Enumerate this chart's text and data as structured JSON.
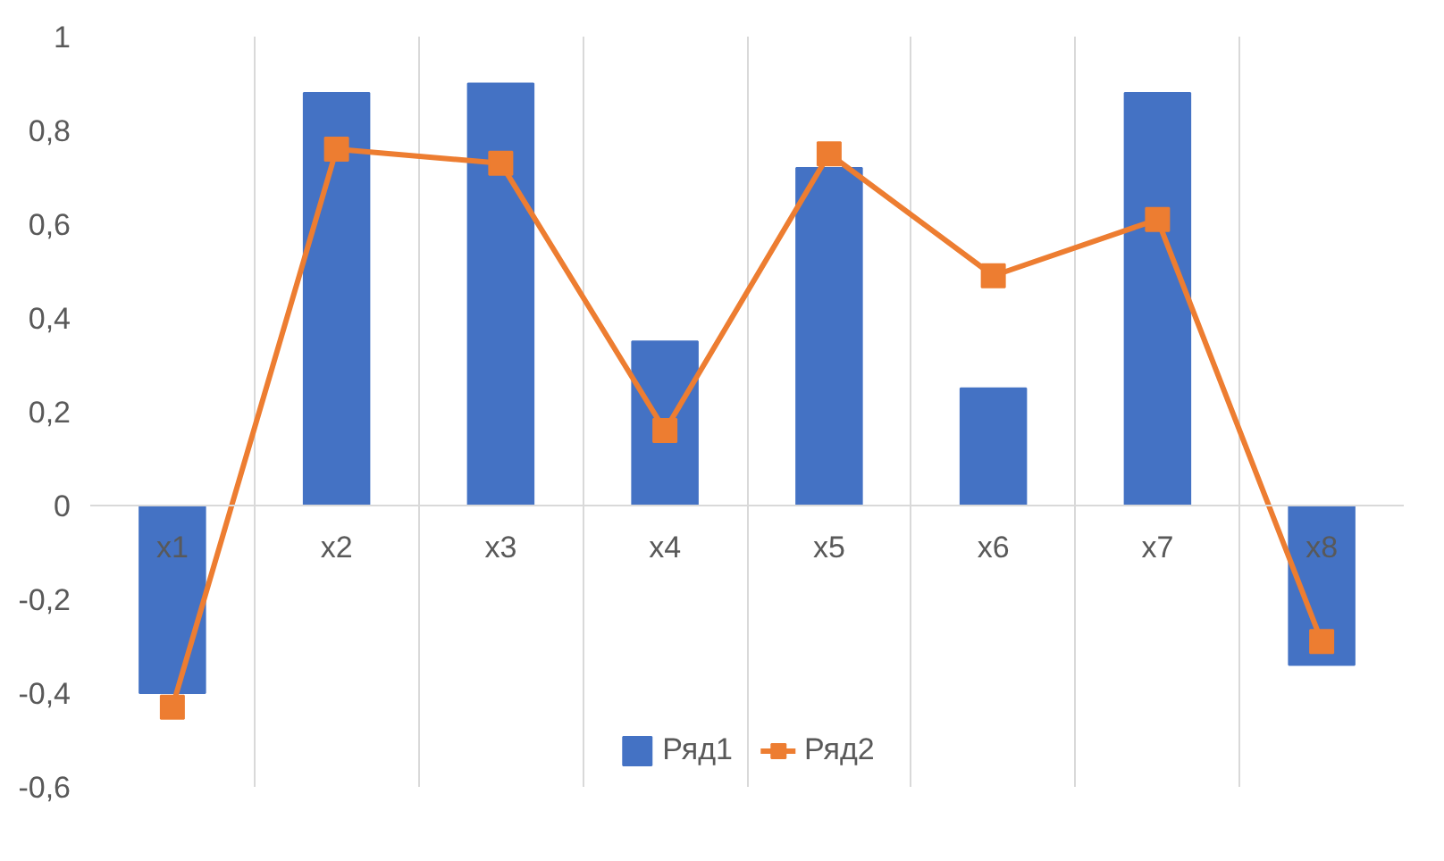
{
  "chart_data": {
    "type": "bar",
    "categories": [
      "x1",
      "x2",
      "x3",
      "x4",
      "x5",
      "x6",
      "x7",
      "x8"
    ],
    "series": [
      {
        "name": "Ряд1",
        "color": "#4472c4",
        "values": [
          -0.4,
          0.88,
          0.9,
          0.35,
          0.72,
          0.25,
          0.88,
          -0.34
        ]
      },
      {
        "name": "Ряд2",
        "color": "#ed7d31",
        "type": "line",
        "marker": "square",
        "values": [
          -0.43,
          0.76,
          0.73,
          0.16,
          0.75,
          0.49,
          0.61,
          -0.29
        ]
      }
    ],
    "ylim": [
      -0.6,
      1
    ],
    "yticks": [
      {
        "value": -0.6,
        "label": "-0,6"
      },
      {
        "value": -0.4,
        "label": "-0,4"
      },
      {
        "value": -0.2,
        "label": "-0,2"
      },
      0,
      {
        "value": 0.2,
        "label": "0,2"
      },
      {
        "value": 0.4,
        "label": "0,4"
      },
      {
        "value": 0.6,
        "label": "0,6"
      },
      {
        "value": 0.8,
        "label": "0,8"
      },
      1
    ],
    "grid": "x",
    "legend": "bottom"
  }
}
